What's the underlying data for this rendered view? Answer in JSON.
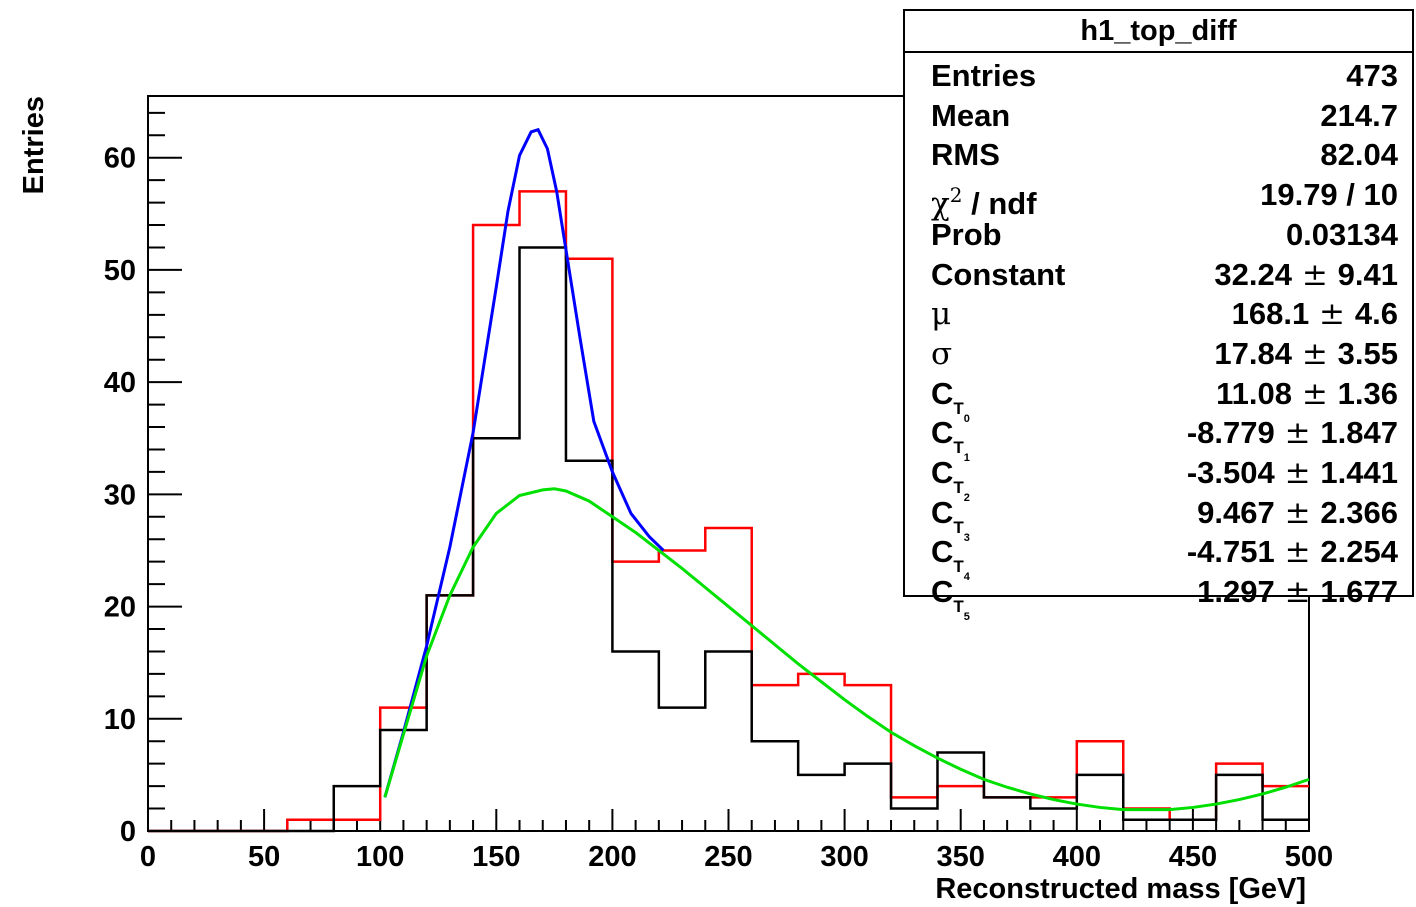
{
  "chart_data": {
    "type": "histogram",
    "xlabel": "Reconstructed mass [GeV]",
    "ylabel": "Entries",
    "xlim": [
      0,
      500
    ],
    "ylim": [
      0,
      65.5
    ],
    "x_ticks": [
      0,
      50,
      100,
      150,
      200,
      250,
      300,
      350,
      400,
      450,
      500
    ],
    "y_ticks": [
      0,
      10,
      20,
      30,
      40,
      50,
      60
    ],
    "bin_edges": [
      0,
      20,
      40,
      60,
      80,
      100,
      120,
      140,
      160,
      180,
      200,
      220,
      240,
      260,
      280,
      300,
      320,
      340,
      360,
      380,
      400,
      420,
      440,
      460,
      480,
      500
    ],
    "series": [
      {
        "color": "#ff0000",
        "values": [
          0,
          0,
          0,
          1,
          1,
          11,
          21,
          54,
          57,
          51,
          24,
          25,
          27,
          13,
          14,
          13,
          3,
          4,
          3,
          3,
          8,
          2,
          1,
          6,
          4
        ]
      },
      {
        "color": "#000000",
        "values": [
          0,
          0,
          0,
          0,
          4,
          9,
          21,
          35,
          52,
          33,
          16,
          11,
          16,
          8,
          5,
          6,
          2,
          7,
          3,
          2,
          5,
          1,
          1,
          5,
          1
        ]
      }
    ],
    "fit_curves": [
      {
        "color": "#0000ff",
        "x": [
          102,
          110,
          120,
          130,
          140,
          150,
          155,
          160,
          165,
          168,
          172,
          176,
          180,
          186,
          192,
          200,
          208,
          216,
          222
        ],
        "y": [
          3.0,
          8.8,
          16.5,
          25.3,
          35.5,
          48.5,
          55.2,
          60.2,
          62.3,
          62.5,
          60.8,
          57.0,
          51.8,
          44.0,
          36.5,
          32.0,
          28.3,
          26.2,
          25.0
        ]
      },
      {
        "color": "#00e000",
        "x": [
          102,
          110,
          120,
          130,
          140,
          150,
          160,
          170,
          175,
          180,
          190,
          200,
          210,
          220,
          230,
          240,
          250,
          260,
          270,
          280,
          290,
          300,
          310,
          320,
          330,
          340,
          350,
          360,
          370,
          380,
          390,
          400,
          410,
          420,
          430,
          440,
          450,
          460,
          470,
          480,
          490,
          500
        ],
        "y": [
          3.0,
          8.6,
          15.6,
          21.0,
          25.3,
          28.3,
          29.9,
          30.4,
          30.5,
          30.3,
          29.4,
          28.0,
          26.6,
          25.0,
          23.4,
          21.7,
          20.0,
          18.3,
          16.6,
          14.9,
          13.3,
          11.7,
          10.2,
          8.8,
          7.6,
          6.5,
          5.5,
          4.6,
          3.9,
          3.3,
          2.8,
          2.4,
          2.1,
          1.9,
          1.9,
          1.9,
          2.1,
          2.4,
          2.8,
          3.3,
          3.9,
          4.6
        ]
      }
    ]
  },
  "stats": {
    "title": "h1_top_diff",
    "rows": [
      {
        "label": "Entries",
        "value": "473"
      },
      {
        "label": "Mean",
        "value": "214.7"
      },
      {
        "label": "RMS",
        "value": "82.04"
      },
      {
        "label_sym": "χ",
        "label_sup": "2",
        "label_rest": " / ndf",
        "value": "19.79 / 10"
      },
      {
        "label": "Prob",
        "value": "0.03134"
      },
      {
        "label": "Constant",
        "value_num": "32.24",
        "value_err": "9.41"
      },
      {
        "label_sym": "μ",
        "value_num": "168.1",
        "value_err": "4.6"
      },
      {
        "label_sym": "σ",
        "value_num": "17.84",
        "value_err": "3.55"
      },
      {
        "label": "C",
        "label_t": "T",
        "label_idx": "0",
        "value_num": "11.08",
        "value_err": "1.36"
      },
      {
        "label": "C",
        "label_t": "T",
        "label_idx": "1",
        "value_num": "-8.779",
        "value_err": "1.847"
      },
      {
        "label": "C",
        "label_t": "T",
        "label_idx": "2",
        "value_num": "-3.504",
        "value_err": "1.441"
      },
      {
        "label": "C",
        "label_t": "T",
        "label_idx": "3",
        "value_num": "9.467",
        "value_err": "2.366"
      },
      {
        "label": "C",
        "label_t": "T",
        "label_idx": "4",
        "value_num": "-4.751",
        "value_err": "2.254"
      },
      {
        "label": "C",
        "label_t": "T",
        "label_idx": "5",
        "value_num": "1.297",
        "value_err": "1.677"
      }
    ],
    "pm_symbol": "±"
  }
}
